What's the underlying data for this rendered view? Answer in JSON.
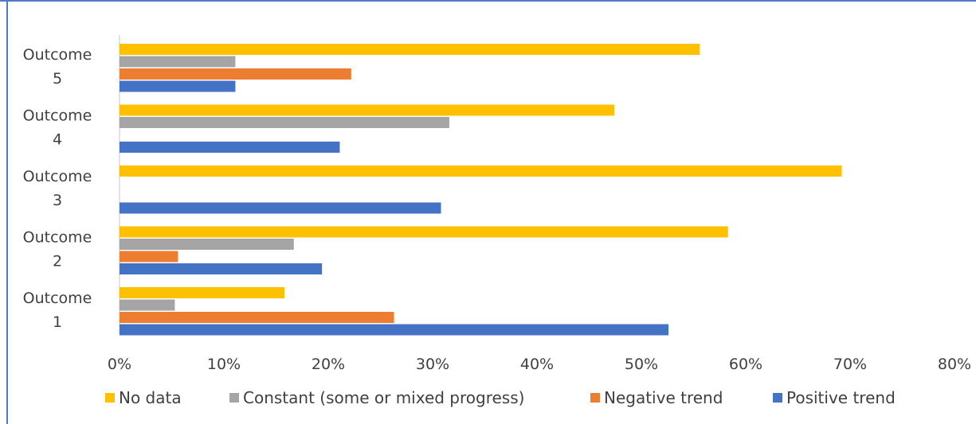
{
  "chart_data": {
    "type": "bar",
    "orientation": "horizontal",
    "title": "",
    "xlabel": "",
    "ylabel": "",
    "categories": [
      [
        "Outcome",
        "5"
      ],
      [
        "Outcome",
        "4"
      ],
      [
        "Outcome",
        "3"
      ],
      [
        "Outcome",
        "2"
      ],
      [
        "Outcome",
        "1"
      ]
    ],
    "xlim": [
      0,
      0.8
    ],
    "xticks": [
      "0%",
      "10%",
      "20%",
      "30%",
      "40%",
      "50%",
      "60%",
      "70%",
      "80%"
    ],
    "grid": false,
    "legend_position": "bottom",
    "series": [
      {
        "name": "No data",
        "color": "#ffc000",
        "values": [
          0.556,
          0.474,
          0.692,
          0.583,
          0.158
        ]
      },
      {
        "name": "Constant (some or mixed progress)",
        "color": "#a5a5a5",
        "values": [
          0.111,
          0.316,
          0,
          0.167,
          0.053
        ]
      },
      {
        "name": "Negative trend",
        "color": "#ed7d31",
        "values": [
          0.222,
          0,
          0,
          0.056,
          0.263
        ]
      },
      {
        "name": "Positive trend",
        "color": "#4472c4",
        "values": [
          0.111,
          0.211,
          0.308,
          0.194,
          0.526
        ]
      }
    ]
  }
}
